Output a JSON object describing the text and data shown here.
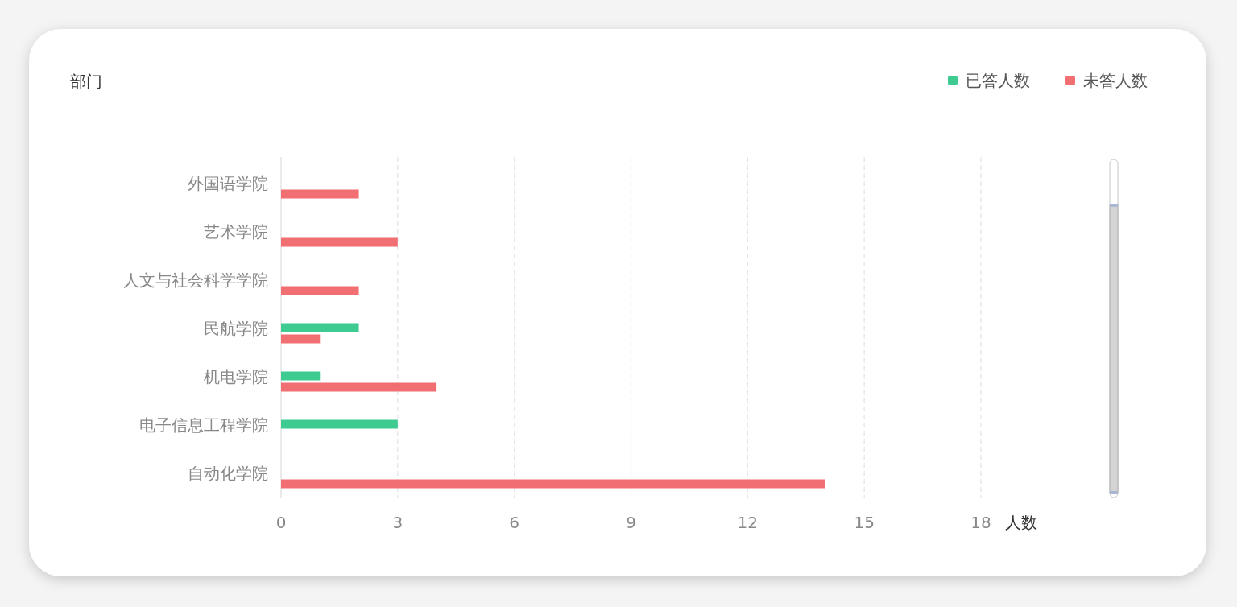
{
  "chart_data": {
    "type": "bar",
    "orientation": "horizontal",
    "ylabel": "部门",
    "xlabel": "人数",
    "categories": [
      "外国语学院",
      "艺术学院",
      "人文与社会科学学院",
      "民航学院",
      "机电学院",
      "电子信息工程学院",
      "自动化学院"
    ],
    "series": [
      {
        "name": "已答人数",
        "color": "#3ecb92",
        "values": [
          null,
          null,
          null,
          2,
          1,
          3,
          null
        ]
      },
      {
        "name": "未答人数",
        "color": "#f16e72",
        "values": [
          2,
          3,
          2,
          1,
          4,
          null,
          14
        ]
      }
    ],
    "xlim": [
      0,
      18
    ],
    "xticks": [
      0,
      3,
      6,
      9,
      12,
      15,
      18
    ],
    "grid": "x",
    "legend": "top right"
  }
}
